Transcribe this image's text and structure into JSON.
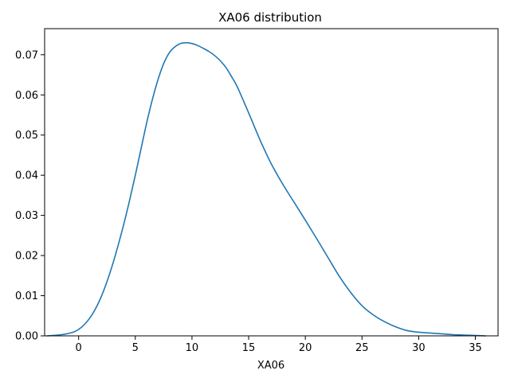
{
  "chart_data": {
    "type": "line",
    "title": "XA06 distribution",
    "xlabel": "XA06",
    "ylabel": "",
    "xlim": [
      -3.0,
      37.0
    ],
    "ylim": [
      0.0,
      0.0765
    ],
    "xticks": [
      0,
      5,
      10,
      15,
      20,
      25,
      30,
      35
    ],
    "xtick_labels": [
      "0",
      "5",
      "10",
      "15",
      "20",
      "25",
      "30",
      "35"
    ],
    "yticks": [
      0.0,
      0.01,
      0.02,
      0.03,
      0.04,
      0.05,
      0.06,
      0.07
    ],
    "ytick_labels": [
      "0.00",
      "0.01",
      "0.02",
      "0.03",
      "0.04",
      "0.05",
      "0.06",
      "0.07"
    ],
    "grid": false,
    "series": [
      {
        "color": "#1f77b4",
        "x": [
          -2.8,
          -1.5,
          -0.5,
          0.0,
          0.5,
          1.0,
          1.5,
          2.0,
          2.5,
          3.0,
          3.5,
          4.0,
          4.5,
          5.0,
          5.5,
          6.0,
          6.5,
          7.0,
          7.5,
          8.0,
          8.5,
          9.0,
          9.5,
          10.0,
          10.5,
          11.0,
          11.5,
          12.0,
          12.5,
          13.0,
          13.5,
          14.0,
          15.0,
          16.0,
          17.0,
          18.0,
          19.0,
          20.0,
          21.0,
          22.0,
          23.0,
          24.0,
          25.0,
          26.0,
          27.0,
          28.0,
          29.0,
          30.0,
          31.0,
          32.0,
          33.0,
          34.0,
          35.0,
          35.9
        ],
        "y": [
          0.0,
          0.0003,
          0.0009,
          0.0016,
          0.0028,
          0.0045,
          0.0068,
          0.0098,
          0.0135,
          0.0178,
          0.0227,
          0.028,
          0.0338,
          0.04,
          0.0465,
          0.053,
          0.0588,
          0.0638,
          0.0678,
          0.0705,
          0.072,
          0.0728,
          0.073,
          0.0728,
          0.0723,
          0.0716,
          0.0708,
          0.0698,
          0.0685,
          0.0668,
          0.0645,
          0.062,
          0.0555,
          0.0488,
          0.0428,
          0.0378,
          0.0333,
          0.0288,
          0.0242,
          0.0195,
          0.0148,
          0.0108,
          0.0075,
          0.0052,
          0.0035,
          0.0022,
          0.0013,
          0.0009,
          0.0007,
          0.0005,
          0.0003,
          0.0002,
          0.0001,
          0.0
        ]
      }
    ]
  }
}
